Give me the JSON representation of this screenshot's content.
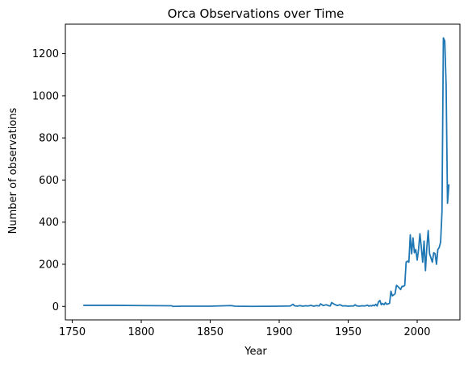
{
  "chart_data": {
    "type": "line",
    "title": "Orca Observations over Time",
    "xlabel": "Year",
    "ylabel": "Number of observations",
    "xlim": [
      1745,
      2031
    ],
    "ylim": [
      -64,
      1340
    ],
    "xticks": [
      1750,
      1800,
      1850,
      1900,
      1950,
      2000
    ],
    "yticks": [
      0,
      200,
      400,
      600,
      800,
      1000,
      1200
    ],
    "grid": false,
    "legend": "none",
    "colors": {
      "line": "#1f77b4",
      "axes": "#000000",
      "background": "#ffffff"
    },
    "series": [
      {
        "x": [
          1758,
          1780,
          1800,
          1822,
          1823,
          1830,
          1850,
          1865,
          1868,
          1880,
          1900,
          1908,
          1910,
          1911,
          1913,
          1915,
          1917,
          1919,
          1921,
          1923,
          1925,
          1927,
          1929,
          1930,
          1932,
          1934,
          1936,
          1937,
          1938,
          1940,
          1942,
          1944,
          1946,
          1948,
          1950,
          1952,
          1954,
          1955,
          1956,
          1958,
          1960,
          1962,
          1964,
          1965,
          1966,
          1967,
          1968,
          1969,
          1970,
          1971,
          1972,
          1973,
          1974,
          1975,
          1976,
          1977,
          1978,
          1979,
          1980,
          1981,
          1982,
          1983,
          1984,
          1985,
          1986,
          1987,
          1988,
          1989,
          1990,
          1991,
          1992,
          1993,
          1994,
          1995,
          1996,
          1997,
          1998,
          1999,
          2000,
          2001,
          2002,
          2003,
          2004,
          2005,
          2006,
          2007,
          2008,
          2009,
          2010,
          2011,
          2012,
          2013,
          2014,
          2015,
          2016,
          2017,
          2018,
          2019,
          2020,
          2021,
          2022,
          2023
        ],
        "y": [
          5,
          5,
          4,
          3,
          0,
          1,
          1,
          4,
          1,
          0,
          1,
          2,
          10,
          3,
          1,
          4,
          1,
          3,
          2,
          5,
          1,
          4,
          2,
          12,
          4,
          8,
          3,
          2,
          18,
          10,
          4,
          8,
          2,
          3,
          1,
          2,
          2,
          8,
          3,
          1,
          3,
          2,
          6,
          1,
          4,
          2,
          6,
          3,
          10,
          2,
          22,
          28,
          8,
          14,
          8,
          18,
          10,
          12,
          15,
          72,
          50,
          55,
          60,
          100,
          95,
          88,
          80,
          95,
          95,
          100,
          210,
          215,
          210,
          340,
          250,
          325,
          255,
          270,
          220,
          270,
          345,
          280,
          210,
          310,
          170,
          280,
          360,
          250,
          230,
          210,
          255,
          250,
          200,
          270,
          280,
          305,
          450,
          1275,
          1260,
          1050,
          490,
          580
        ]
      }
    ]
  }
}
